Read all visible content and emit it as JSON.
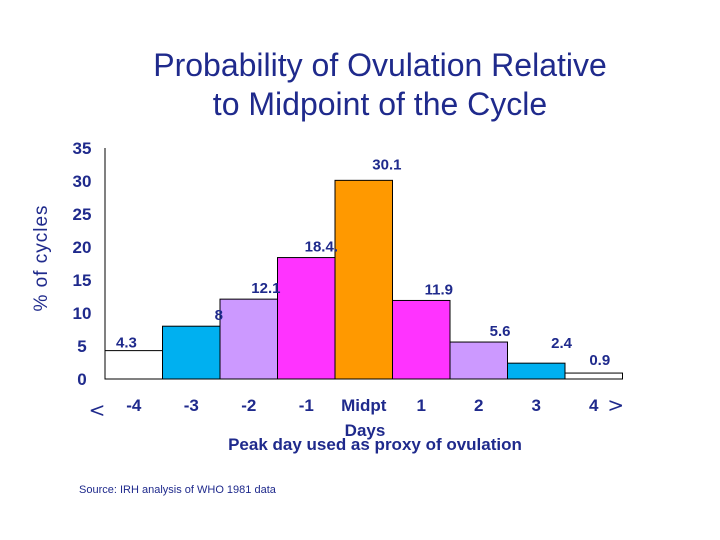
{
  "chart_data": {
    "type": "bar",
    "title": "Probability of Ovulation Relative to Midpoint of the Cycle",
    "title_lines": [
      "Probability of Ovulation Relative",
      "to Midpoint of the Cycle"
    ],
    "ylabel": "% of cycles",
    "xlabel": "Peak day used as proxy of ovulation",
    "xlabel_top": "Days",
    "ylim": [
      0,
      35
    ],
    "yticks": [
      0,
      5,
      10,
      15,
      20,
      25,
      30,
      35
    ],
    "categories": [
      "-4",
      "-3",
      "-2",
      "-1",
      "Midpt",
      "1",
      "2",
      "3",
      "4"
    ],
    "values": [
      4.3,
      8,
      12.1,
      18.4,
      30.1,
      11.9,
      5.6,
      2.4,
      0.9
    ],
    "data_labels": [
      "4.3",
      "8",
      "12.1",
      "18.4.",
      "30.1",
      "11.9",
      "5.6",
      "2.4",
      "0.9"
    ],
    "bar_colors": [
      "#ffffff",
      "#00b0f0",
      "#cc99ff",
      "#ff33ff",
      "#ff9900",
      "#ff33ff",
      "#cc99ff",
      "#00b0f0",
      "#ffffff"
    ],
    "first_prefix": "<",
    "last_suffix": ">",
    "grid": false,
    "legend": "none",
    "text_color": "#1f2a8c"
  },
  "source": "Source: IRH analysis of WHO 1981 data"
}
